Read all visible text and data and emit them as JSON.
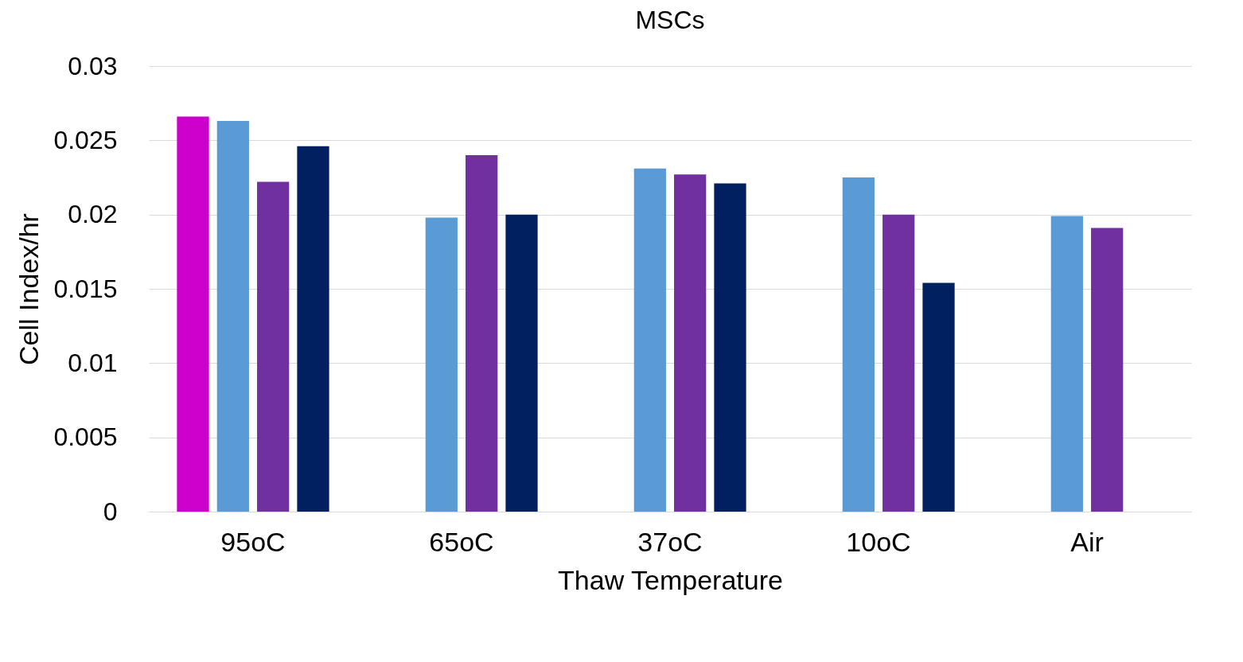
{
  "chart_data": {
    "type": "bar",
    "title": "MSCs",
    "xlabel": "Thaw Temperature",
    "ylabel": "Cell Index/hr",
    "categories": [
      "95oC",
      "65oC",
      "37oC",
      "10oC",
      "Air"
    ],
    "series": [
      {
        "color": "#cc00cc",
        "values": [
          0.0266,
          null,
          null,
          null,
          null
        ]
      },
      {
        "color": "#5b9bd5",
        "values": [
          0.0263,
          0.0198,
          0.0231,
          0.0225,
          0.0199
        ]
      },
      {
        "color": "#7030a0",
        "values": [
          0.0222,
          0.024,
          0.0227,
          0.02,
          0.0191
        ]
      },
      {
        "color": "#002060",
        "values": [
          0.0246,
          0.02,
          0.0221,
          0.0154,
          null
        ]
      }
    ],
    "ylim": [
      0,
      0.03
    ],
    "yticks": [
      0,
      0.005,
      0.01,
      0.015,
      0.02,
      0.025,
      0.03
    ],
    "grid": "y",
    "legend": false
  }
}
